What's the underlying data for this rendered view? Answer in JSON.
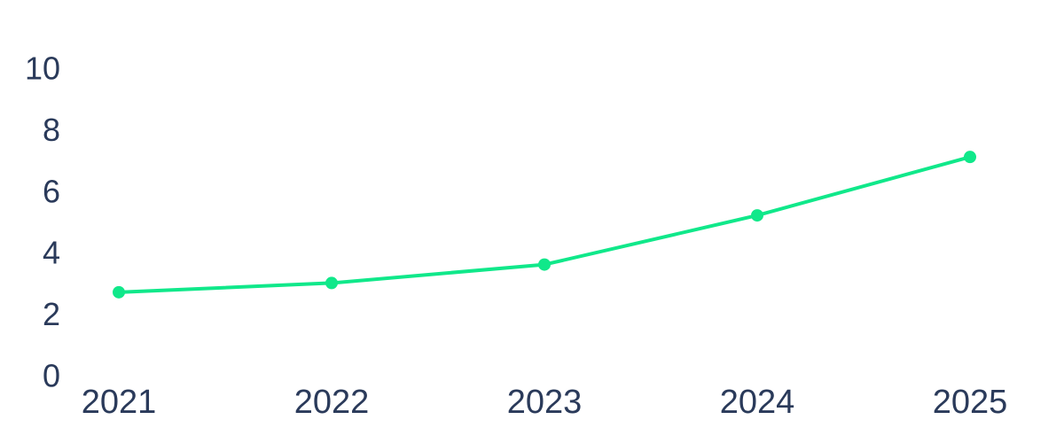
{
  "chart_data": {
    "type": "line",
    "categories": [
      "2021",
      "2022",
      "2023",
      "2024",
      "2025"
    ],
    "series": [
      {
        "name": null,
        "color": "#10e88a",
        "values": [
          2.8,
          3.1,
          3.7,
          5.3,
          7.2
        ]
      }
    ],
    "ylim": [
      0,
      10
    ],
    "yticks": [
      0,
      2,
      4,
      6,
      8,
      10
    ],
    "grid": false
  }
}
